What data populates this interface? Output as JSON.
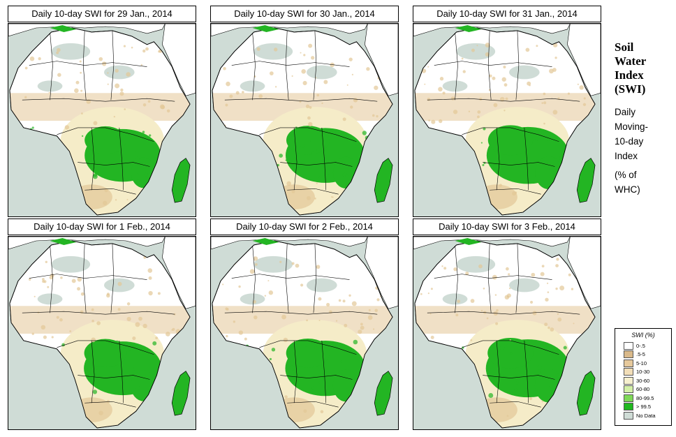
{
  "panels": [
    {
      "title": "Daily 10-day SWI for  29 Jan., 2014",
      "wet": 1.0
    },
    {
      "title": "Daily 10-day SWI for  30 Jan., 2014",
      "wet": 1.04
    },
    {
      "title": "Daily 10-day SWI for  31 Jan., 2014",
      "wet": 1.08
    },
    {
      "title": "Daily 10-day SWI for  1 Feb., 2014",
      "wet": 1.02
    },
    {
      "title": "Daily 10-day SWI for  2 Feb., 2014",
      "wet": 1.05
    },
    {
      "title": "Daily 10-day SWI for  3 Feb., 2014",
      "wet": 1.1
    }
  ],
  "side": {
    "title_lines": [
      "Soil",
      "Water",
      "Index",
      "(SWI)"
    ],
    "subtitle_lines": [
      "Daily",
      "Moving-",
      "10-day",
      "Index"
    ],
    "unit_lines": [
      "(% of",
      " WHC)"
    ]
  },
  "legend": {
    "title": "SWI (%)",
    "items": [
      {
        "label": "0-.5",
        "color": "#ffffff"
      },
      {
        "label": ".5-5",
        "color": "#d9b98a"
      },
      {
        "label": "5-10",
        "color": "#e6c99c"
      },
      {
        "label": "10-30",
        "color": "#f2deb8"
      },
      {
        "label": "30-60",
        "color": "#f7f0cf"
      },
      {
        "label": "60-80",
        "color": "#d4f0a8"
      },
      {
        "label": "80-99.5",
        "color": "#7ed957"
      },
      {
        "label": "> 99.5",
        "color": "#1fb81f"
      },
      {
        "label": "No Data",
        "color": "#cfdcd6"
      }
    ]
  },
  "colors": {
    "sea": "#cfdcd6",
    "land": "#ffffff",
    "dry": "#e3c797",
    "semi": "#f5ecc8",
    "wet": "#23b523",
    "nodata": "#cfdcd6"
  }
}
